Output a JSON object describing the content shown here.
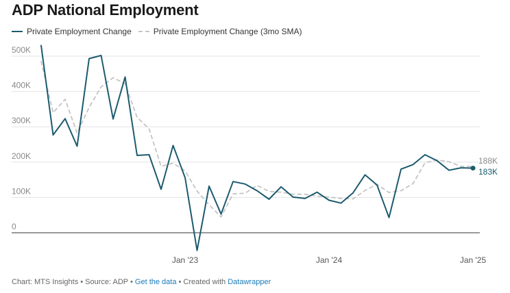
{
  "chart_data": {
    "type": "line",
    "title": "ADP National Employment",
    "xlabel": "",
    "ylabel": "",
    "ylim": [
      -60000,
      540000
    ],
    "yticks": [
      0,
      100000,
      200000,
      300000,
      400000,
      500000
    ],
    "ytick_labels": [
      "0",
      "100K",
      "200K",
      "300K",
      "400K",
      "500K"
    ],
    "xticks": [
      "2023-01",
      "2024-01",
      "2025-01"
    ],
    "xtick_labels": [
      "Jan '23",
      "Jan '24",
      "Jan '25"
    ],
    "grid": true,
    "legend": "top-left",
    "x": [
      "2022-01",
      "2022-02",
      "2022-03",
      "2022-04",
      "2022-05",
      "2022-06",
      "2022-07",
      "2022-08",
      "2022-09",
      "2022-10",
      "2022-11",
      "2022-12",
      "2023-01",
      "2023-02",
      "2023-03",
      "2023-04",
      "2023-05",
      "2023-06",
      "2023-07",
      "2023-08",
      "2023-09",
      "2023-10",
      "2023-11",
      "2023-12",
      "2024-01",
      "2024-02",
      "2024-03",
      "2024-04",
      "2024-05",
      "2024-06",
      "2024-07",
      "2024-08",
      "2024-09",
      "2024-10",
      "2024-11",
      "2024-12",
      "2025-01"
    ],
    "series": [
      {
        "name": "Private Employment Change",
        "color": "#1b5a6e",
        "style": "solid",
        "values": [
          530000,
          277000,
          323000,
          245000,
          493000,
          502000,
          322000,
          441000,
          219000,
          221000,
          123000,
          247000,
          156000,
          -50000,
          132000,
          53000,
          145000,
          138000,
          119000,
          95000,
          130000,
          101000,
          97000,
          115000,
          92000,
          84000,
          113000,
          164000,
          135000,
          43000,
          180000,
          193000,
          221000,
          204000,
          177000,
          184000,
          183000
        ],
        "end_label": "183K"
      },
      {
        "name": "Private Employment Change (3mo SMA)",
        "color": "#c4c4c4",
        "style": "dashed",
        "values": [
          485000,
          340000,
          378000,
          282000,
          355000,
          413000,
          439000,
          422000,
          327000,
          294000,
          188000,
          197000,
          175000,
          118000,
          79000,
          45000,
          110000,
          112000,
          134000,
          117000,
          115000,
          109000,
          109000,
          104000,
          101000,
          97000,
          96000,
          120000,
          137000,
          114000,
          119000,
          139000,
          198000,
          206000,
          201000,
          188000,
          188000
        ],
        "end_label": "188K"
      }
    ]
  },
  "footer": {
    "prefix": "Chart: MTS Insights • Source: ADP • ",
    "data_link": "Get the data",
    "middle": " • Created with ",
    "tool_link": "Datawrapper"
  }
}
